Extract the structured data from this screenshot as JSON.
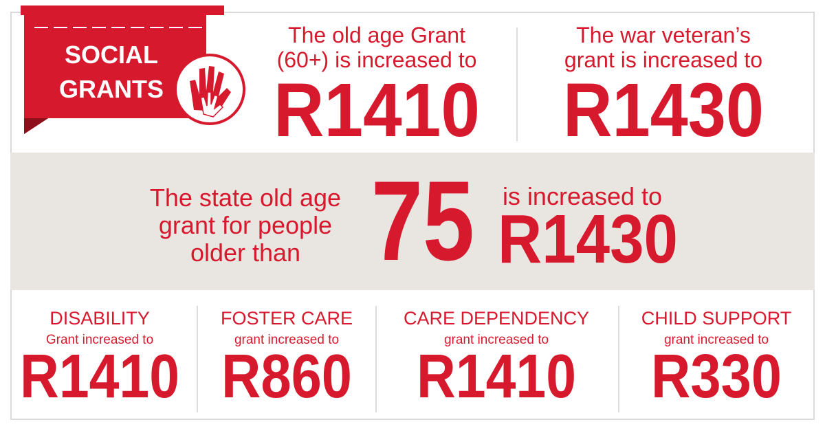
{
  "banner": {
    "lines": [
      "SOCIAL",
      "GRANTS"
    ]
  },
  "top": [
    {
      "lines": [
        "The old age Grant",
        "(60+) is increased to"
      ],
      "amount": "R1410"
    },
    {
      "lines": [
        "The war veteran’s",
        "grant is increased to"
      ],
      "amount": "R1430"
    }
  ],
  "middle": {
    "left_lines": [
      "The state old age",
      "grant for people",
      "older than"
    ],
    "age": "75",
    "right_line": "is increased to",
    "amount": "R1430"
  },
  "bottom": [
    {
      "heading": "DISABILITY",
      "subheading": "Grant increased to",
      "amount": "R1410"
    },
    {
      "heading": "FOSTER CARE",
      "subheading": "grant increased to",
      "amount": "R860"
    },
    {
      "heading": "CARE DEPENDENCY",
      "subheading": "grant increased to",
      "amount": "R1410"
    },
    {
      "heading": "CHILD SUPPORT",
      "subheading": "grant increased to",
      "amount": "R330"
    }
  ]
}
